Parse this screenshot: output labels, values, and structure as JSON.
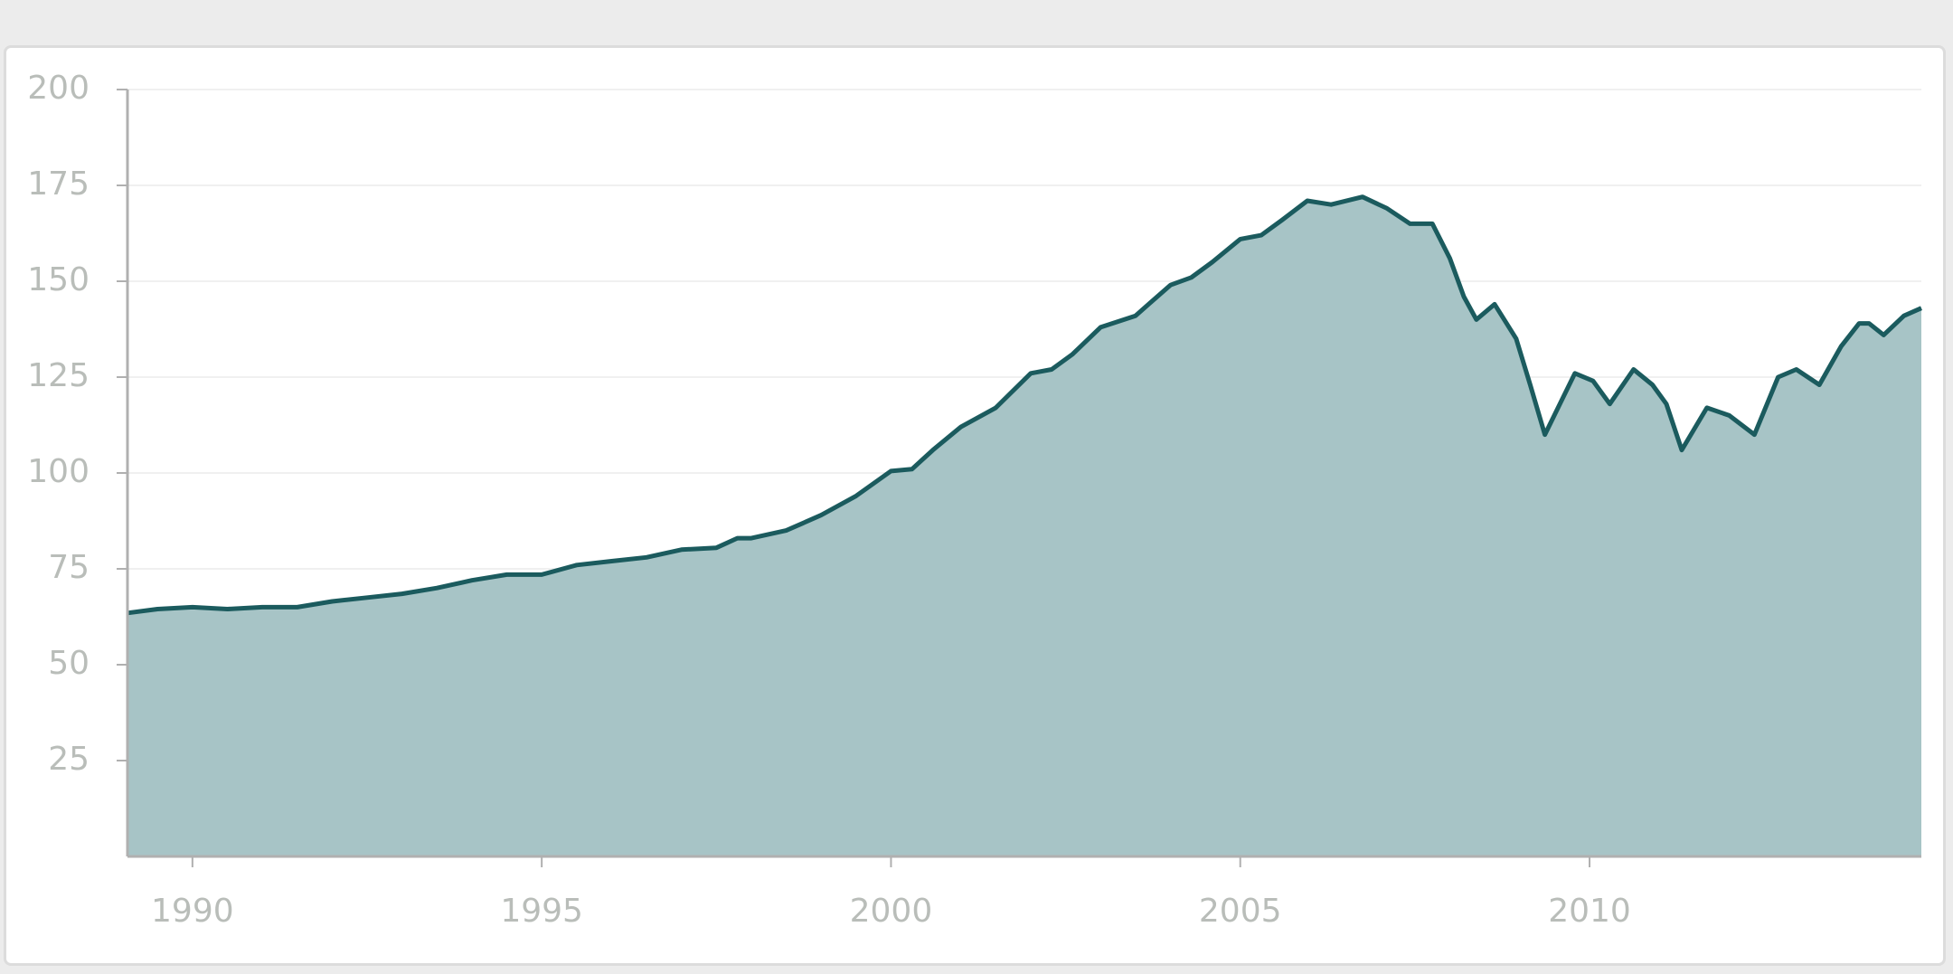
{
  "chart_data": {
    "type": "area",
    "x": [
      1989.07,
      1989.5,
      1990.0,
      1990.5,
      1991.0,
      1991.5,
      1992.0,
      1992.5,
      1993.0,
      1993.5,
      1994.0,
      1994.5,
      1995.0,
      1995.5,
      1996.0,
      1996.5,
      1997.0,
      1997.5,
      1997.8,
      1998.0,
      1998.5,
      1999.0,
      1999.5,
      2000.0,
      2000.3,
      2000.6,
      2001.0,
      2001.5,
      2002.0,
      2002.3,
      2002.6,
      2003.0,
      2003.5,
      2004.0,
      2004.3,
      2004.6,
      2005.0,
      2005.3,
      2005.6,
      2005.96,
      2006.3,
      2006.75,
      2007.1,
      2007.43,
      2007.75,
      2008.0,
      2008.2,
      2008.38,
      2008.64,
      2008.95,
      2009.15,
      2009.36,
      2009.79,
      2010.05,
      2010.29,
      2010.63,
      2010.9,
      2011.1,
      2011.32,
      2011.68,
      2012.0,
      2012.36,
      2012.7,
      2012.96,
      2013.29,
      2013.6,
      2013.86,
      2014.0,
      2014.21,
      2014.5,
      2014.75
    ],
    "series": [
      {
        "color": "#1b5b5e",
        "fill": "#a7c4c6",
        "values": [
          63.5,
          64.5,
          65,
          64.5,
          65,
          65,
          66.5,
          67.5,
          68.5,
          70,
          72,
          73.5,
          73.5,
          76,
          77,
          78,
          80,
          80.5,
          83,
          83,
          85,
          89,
          94,
          100.5,
          101,
          106,
          112,
          117,
          126,
          127,
          131,
          138,
          141,
          149,
          151,
          155,
          161,
          162,
          166,
          171,
          170,
          172,
          169,
          165,
          165,
          156,
          146,
          140,
          144,
          135,
          123,
          110,
          126,
          124,
          118,
          127,
          123,
          118,
          106,
          117,
          115,
          110,
          125,
          127,
          123,
          133,
          139,
          139,
          136,
          141,
          143
        ]
      }
    ],
    "xlim": [
      1989.07,
      2014.75
    ],
    "xticks": [
      1990,
      1995,
      2000,
      2005,
      2010
    ],
    "ylim": [
      0,
      200
    ],
    "yticks": [
      25,
      50,
      75,
      100,
      125,
      150,
      175,
      200
    ],
    "grid": true
  }
}
